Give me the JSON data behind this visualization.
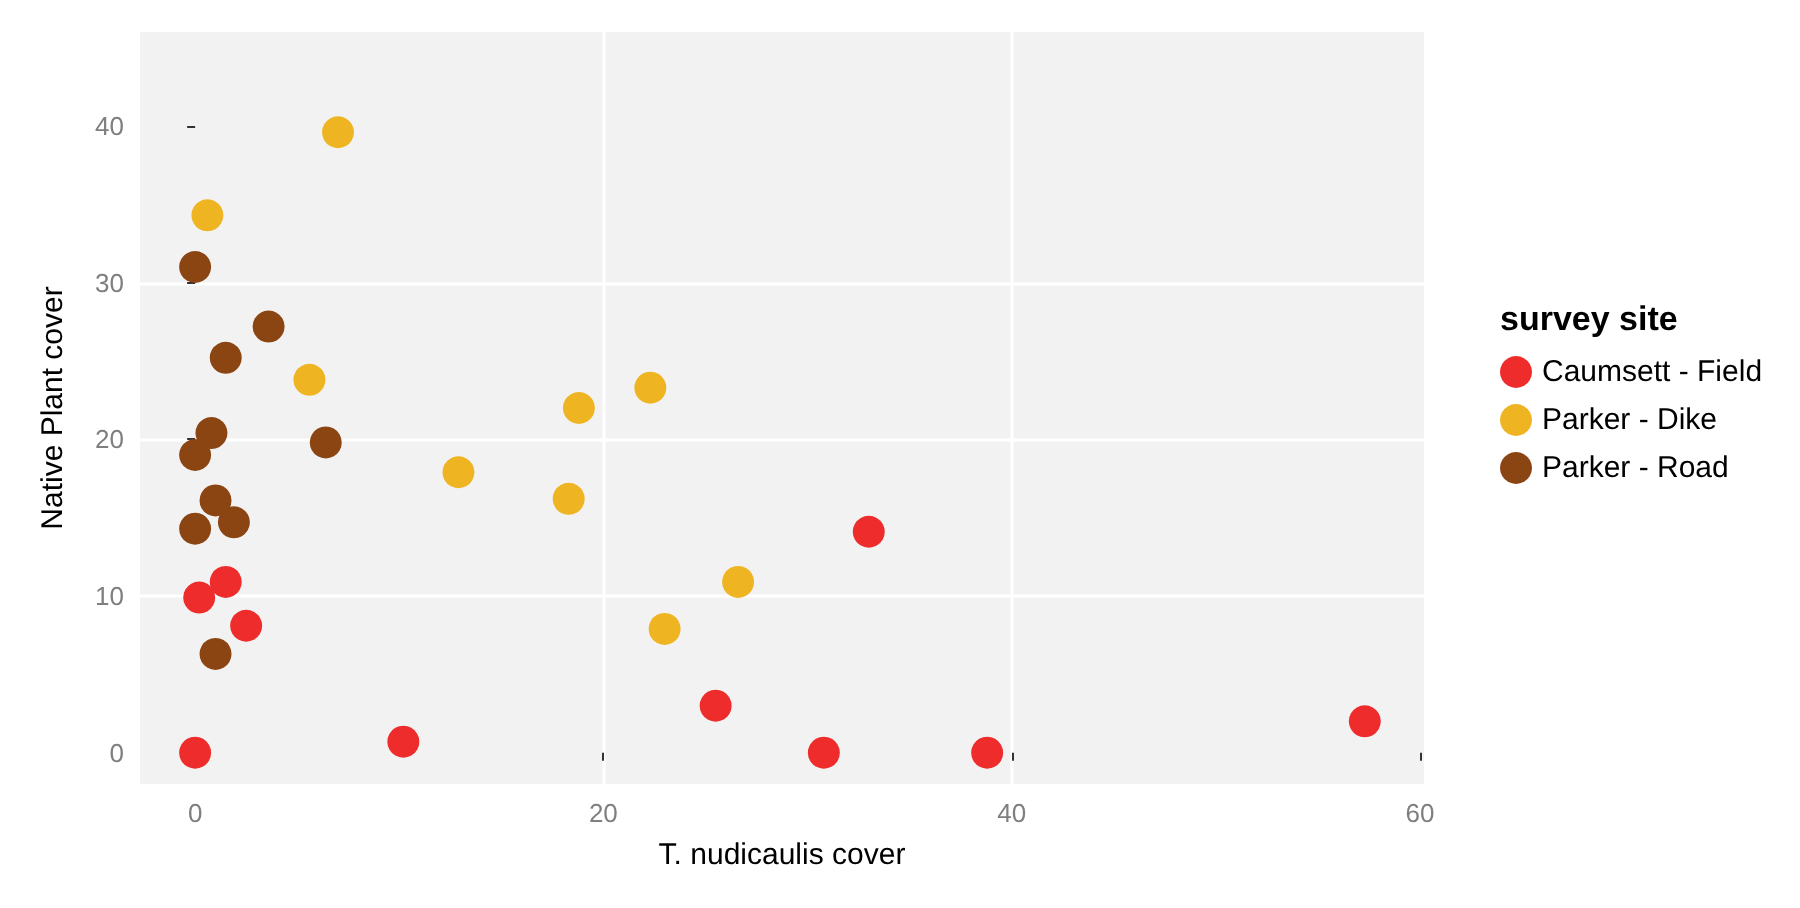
{
  "chart_data": {
    "type": "scatter",
    "xlabel": "T. nudicaulis cover",
    "ylabel": "Native Plant cover",
    "legend_title": "survey site",
    "legend": "right",
    "grid": true,
    "marker": "circle",
    "xlim": [
      -2.7,
      60.2
    ],
    "ylim": [
      -2,
      46
    ],
    "xticks": [
      0,
      20,
      40,
      60
    ],
    "yticks": [
      0,
      10,
      20,
      30,
      40
    ],
    "series": [
      {
        "name": "Caumsett - Field",
        "color": "#ee2c2c",
        "x": [
          0,
          0.2,
          1.5,
          2.5,
          10.2,
          25.5,
          30.8,
          38.8,
          33,
          57.3
        ],
        "values": [
          0,
          9.9,
          10.9,
          8.1,
          0.7,
          3,
          0,
          0,
          14.1,
          2
        ]
      },
      {
        "name": "Parker - Dike",
        "color": "#eeb422",
        "x": [
          7,
          0.6,
          5.6,
          12.9,
          18.8,
          18.3,
          22.3,
          26.6,
          23
        ],
        "values": [
          39.6,
          34.3,
          23.8,
          17.9,
          22,
          16.2,
          23.3,
          10.9,
          7.9
        ]
      },
      {
        "name": "Parker - Road",
        "color": "#8b4513",
        "x": [
          0,
          3.6,
          1.5,
          0.8,
          0,
          6.4,
          1,
          1.9,
          0,
          1
        ],
        "values": [
          31,
          27.2,
          25.2,
          20.4,
          19,
          19.8,
          16.1,
          14.7,
          14.3,
          6.3
        ]
      }
    ]
  }
}
